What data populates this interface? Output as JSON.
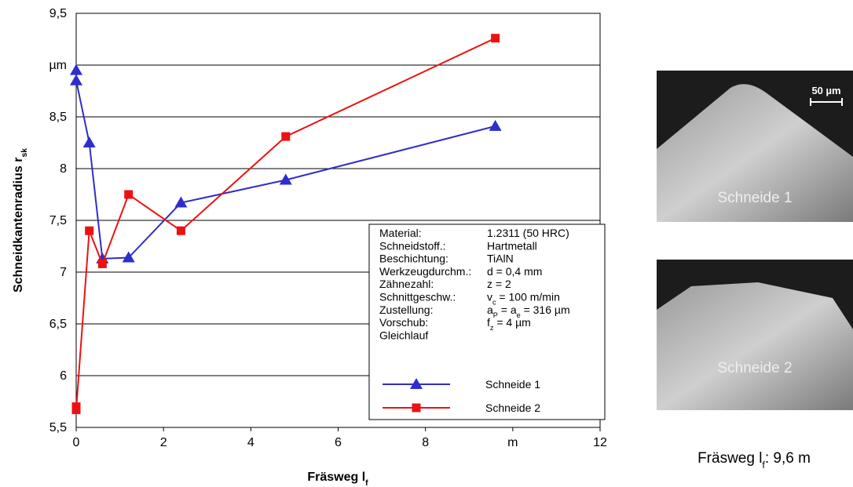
{
  "chart_data": {
    "type": "line",
    "xlabel": [
      {
        "t": "Fräsweg l"
      },
      {
        "t": "f",
        "sub": true
      }
    ],
    "ylabel": [
      {
        "t": "Schneidkantenradius r"
      },
      {
        "t": "sk",
        "sub": true
      }
    ],
    "xlim": [
      0,
      12
    ],
    "xticks": [
      0,
      2,
      4,
      6,
      8,
      {
        "value": 10,
        "label": "m"
      },
      12
    ],
    "ylim": [
      5.5,
      9.5
    ],
    "yticks": [
      {
        "value": 5.5,
        "label": "5,5"
      },
      6,
      {
        "value": 6.5,
        "label": "6,5"
      },
      7,
      {
        "value": 7.5,
        "label": "7,5"
      },
      8,
      {
        "value": 8.5,
        "label": "8,5"
      },
      {
        "value": 9,
        "label": "µm"
      },
      {
        "value": 9.5,
        "label": "9,5"
      }
    ],
    "grid": true,
    "series": [
      {
        "name": "Schneide 1",
        "color": "#2e2ecc",
        "marker": "triangle",
        "x": [
          0,
          0,
          0.3,
          0.6,
          1.2,
          2.4,
          4.8,
          9.6
        ],
        "values": [
          8.95,
          8.85,
          8.25,
          7.13,
          7.14,
          7.67,
          7.89,
          8.41
        ]
      },
      {
        "name": "Schneide 2",
        "color": "#ee1111",
        "marker": "square",
        "x": [
          0,
          0,
          0.3,
          0.6,
          1.2,
          2.4,
          4.8,
          9.6
        ],
        "values": [
          5.7,
          5.67,
          7.4,
          7.08,
          7.75,
          7.4,
          8.31,
          9.26
        ]
      }
    ],
    "info": [
      {
        "label": "Material:",
        "value": [
          {
            "t": "1.2311 (50 HRC)"
          }
        ]
      },
      {
        "label": "Schneidstoff.:",
        "value": [
          {
            "t": "Hartmetall"
          }
        ]
      },
      {
        "label": "Beschichtung:",
        "value": [
          {
            "t": "TiAlN"
          }
        ]
      },
      {
        "label": "Werkzeugdurchm.:",
        "value": [
          {
            "t": "d = 0,4 mm"
          }
        ]
      },
      {
        "label": "Zähnezahl:",
        "value": [
          {
            "t": "z = 2"
          }
        ]
      },
      {
        "label": "Schnittgeschw.:",
        "value": [
          {
            "t": "v"
          },
          {
            "t": "c",
            "sub": true
          },
          {
            "t": " = 100 m/min"
          }
        ]
      },
      {
        "label": "Zustellung:",
        "value": [
          {
            "t": "a"
          },
          {
            "t": "P",
            "sub": true
          },
          {
            "t": " = a"
          },
          {
            "t": "e",
            "sub": true
          },
          {
            "t": " = 316 µm"
          }
        ]
      },
      {
        "label": "Vorschub:",
        "value": [
          {
            "t": "f"
          },
          {
            "t": "z",
            "sub": true
          },
          {
            "t": " = 4 µm"
          }
        ]
      },
      {
        "label": "Gleichlauf"
      }
    ]
  },
  "panel": {
    "images": [
      {
        "label": "Schneide 1"
      },
      {
        "label": "Schneide 2"
      }
    ],
    "scale_bar": "50 µm",
    "caption": [
      {
        "t": "Fräsweg l"
      },
      {
        "t": "f",
        "sub": true
      },
      {
        "t": ": 9,6 m"
      }
    ]
  }
}
